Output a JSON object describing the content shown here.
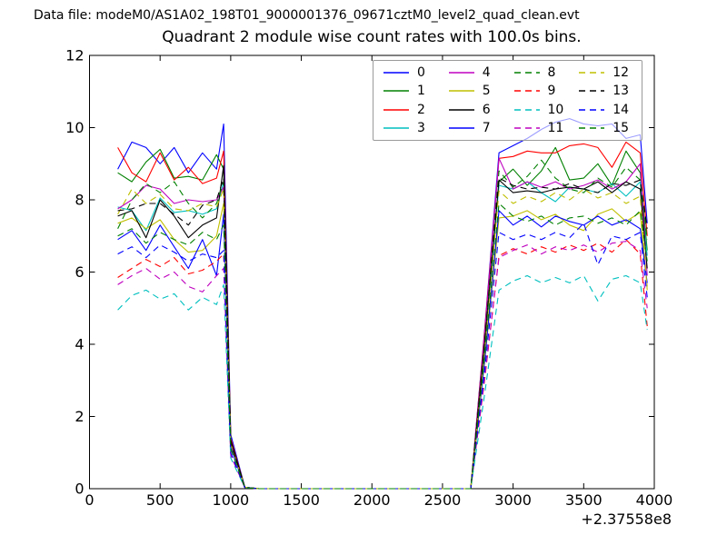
{
  "header": {
    "data_file_label": "Data file: modeM0/AS1A02_198T01_9000001376_09671cztM0_level2_quad_clean.evt"
  },
  "chart_data": {
    "type": "line",
    "title": "Quadrant 2 module wise count rates with 100.0s bins.",
    "xlabel": "",
    "ylabel": "",
    "xlim": [
      0,
      4000
    ],
    "ylim": [
      0,
      12
    ],
    "xticks": [
      0,
      500,
      1000,
      1500,
      2000,
      2500,
      3000,
      3500,
      4000
    ],
    "yticks": [
      0,
      2,
      4,
      6,
      8,
      10,
      12
    ],
    "x_offset_text": "+2.37558e8",
    "grid": false,
    "legend_position": "upper right, 4 columns, semi-transparent",
    "x": [
      200,
      300,
      400,
      500,
      600,
      700,
      800,
      900,
      950,
      1000,
      1100,
      1200,
      1300,
      1400,
      1500,
      1600,
      1700,
      1800,
      1900,
      2000,
      2100,
      2200,
      2300,
      2400,
      2500,
      2600,
      2700,
      2800,
      2900,
      3000,
      3100,
      3200,
      3300,
      3400,
      3500,
      3600,
      3700,
      3800,
      3900,
      3950
    ],
    "series": [
      {
        "name": "0",
        "color": "#0000ff",
        "dash": false,
        "values": [
          8.85,
          9.6,
          9.45,
          9.0,
          9.45,
          8.75,
          9.3,
          8.85,
          10.1,
          1.5,
          0.04,
          0,
          0,
          0,
          0,
          0,
          0,
          0,
          0,
          0,
          0,
          0,
          0,
          0,
          0,
          0,
          0,
          4.45,
          9.3,
          9.5,
          9.7,
          9.95,
          10.15,
          10.25,
          10.1,
          10.05,
          10.1,
          9.7,
          9.8,
          7.35
        ]
      },
      {
        "name": "1",
        "color": "#008000",
        "dash": false,
        "values": [
          8.75,
          8.5,
          9.05,
          9.4,
          8.6,
          8.65,
          8.55,
          9.25,
          8.85,
          1.35,
          0.04,
          0,
          0,
          0,
          0,
          0,
          0,
          0,
          0,
          0,
          0,
          0,
          0,
          0,
          0,
          0,
          0,
          4.1,
          8.5,
          8.85,
          8.4,
          8.8,
          9.45,
          8.55,
          8.6,
          9.0,
          8.4,
          9.35,
          8.75,
          6.6
        ]
      },
      {
        "name": "2",
        "color": "#ff0000",
        "dash": false,
        "values": [
          9.45,
          8.75,
          8.5,
          9.3,
          8.55,
          8.9,
          8.45,
          8.6,
          9.35,
          1.4,
          0.04,
          0,
          0,
          0,
          0,
          0,
          0,
          0,
          0,
          0,
          0,
          0,
          0,
          0,
          0,
          0,
          0,
          4.4,
          9.15,
          9.2,
          9.35,
          9.3,
          9.3,
          9.5,
          9.55,
          9.45,
          8.9,
          9.6,
          9.3,
          7.0
        ]
      },
      {
        "name": "3",
        "color": "#00bfbf",
        "dash": false,
        "values": [
          7.8,
          7.7,
          7.15,
          8.05,
          7.65,
          7.7,
          7.6,
          7.75,
          8.5,
          1.28,
          0.04,
          0,
          0,
          0,
          0,
          0,
          0,
          0,
          0,
          0,
          0,
          0,
          0,
          0,
          0,
          0,
          0,
          4.0,
          8.4,
          8.3,
          8.5,
          8.2,
          7.95,
          8.35,
          8.3,
          8.2,
          8.45,
          8.1,
          8.5,
          6.45
        ]
      },
      {
        "name": "4",
        "color": "#bf00bf",
        "dash": false,
        "values": [
          7.75,
          8.0,
          8.4,
          8.3,
          7.9,
          8.0,
          7.95,
          8.0,
          8.35,
          1.25,
          0.04,
          0,
          0,
          0,
          0,
          0,
          0,
          0,
          0,
          0,
          0,
          0,
          0,
          0,
          0,
          0,
          0,
          4.3,
          9.15,
          8.3,
          8.5,
          8.35,
          8.5,
          8.3,
          8.4,
          8.55,
          8.3,
          8.5,
          9.0,
          5.9
        ]
      },
      {
        "name": "5",
        "color": "#bfbf00",
        "dash": false,
        "values": [
          7.35,
          7.5,
          7.2,
          7.45,
          6.9,
          6.55,
          6.6,
          7.0,
          7.9,
          1.18,
          0.04,
          0,
          0,
          0,
          0,
          0,
          0,
          0,
          0,
          0,
          0,
          0,
          0,
          0,
          0,
          0,
          0,
          3.55,
          7.5,
          7.55,
          7.7,
          7.45,
          7.6,
          7.3,
          7.15,
          7.6,
          7.75,
          7.4,
          7.65,
          5.6
        ]
      },
      {
        "name": "6",
        "color": "#000000",
        "dash": false,
        "values": [
          7.55,
          7.7,
          6.95,
          8.0,
          7.55,
          6.95,
          7.3,
          7.5,
          8.95,
          1.34,
          0.04,
          0,
          0,
          0,
          0,
          0,
          0,
          0,
          0,
          0,
          0,
          0,
          0,
          0,
          0,
          0,
          0,
          4.05,
          8.55,
          8.2,
          8.25,
          8.2,
          8.3,
          8.35,
          8.3,
          8.5,
          8.2,
          8.5,
          8.3,
          6.1
        ]
      },
      {
        "name": "7",
        "color": "#0000ff",
        "dash": false,
        "values": [
          6.9,
          7.15,
          6.6,
          7.3,
          6.7,
          6.1,
          6.9,
          5.9,
          7.6,
          1.14,
          0.04,
          0,
          0,
          0,
          0,
          0,
          0,
          0,
          0,
          0,
          0,
          0,
          0,
          0,
          0,
          0,
          0,
          3.6,
          7.7,
          7.3,
          7.55,
          7.25,
          7.55,
          7.4,
          7.3,
          7.55,
          7.3,
          7.45,
          7.2,
          5.7
        ]
      },
      {
        "name": "8",
        "color": "#008000",
        "dash": true,
        "values": [
          7.2,
          8.0,
          8.45,
          8.2,
          8.5,
          7.9,
          7.5,
          7.9,
          8.5,
          1.27,
          0.04,
          0,
          0,
          0,
          0,
          0,
          0,
          0,
          0,
          0,
          0,
          0,
          0,
          0,
          0,
          0,
          0,
          4.15,
          8.8,
          8.35,
          8.65,
          9.1,
          8.6,
          8.3,
          8.2,
          8.6,
          8.35,
          8.9,
          8.55,
          6.9
        ]
      },
      {
        "name": "9",
        "color": "#ff0000",
        "dash": true,
        "values": [
          5.85,
          6.1,
          6.35,
          6.15,
          6.4,
          5.95,
          6.05,
          6.3,
          6.5,
          0.97,
          0.03,
          0,
          0,
          0,
          0,
          0,
          0,
          0,
          0,
          0,
          0,
          0,
          0,
          0,
          0,
          0,
          0,
          3.05,
          6.45,
          6.65,
          6.5,
          6.7,
          6.55,
          6.75,
          6.6,
          6.8,
          6.55,
          6.9,
          6.5,
          4.5
        ]
      },
      {
        "name": "10",
        "color": "#00bfbf",
        "dash": true,
        "values": [
          4.95,
          5.35,
          5.5,
          5.25,
          5.4,
          4.95,
          5.3,
          5.1,
          5.65,
          0.85,
          0.03,
          0,
          0,
          0,
          0,
          0,
          0,
          0,
          0,
          0,
          0,
          0,
          0,
          0,
          0,
          0,
          0,
          2.65,
          5.5,
          5.75,
          5.9,
          5.7,
          5.85,
          5.7,
          5.9,
          5.2,
          5.8,
          5.9,
          5.7,
          4.4
        ]
      },
      {
        "name": "11",
        "color": "#bf00bf",
        "dash": true,
        "values": [
          5.65,
          5.9,
          6.1,
          5.8,
          6.0,
          5.6,
          5.45,
          5.9,
          6.1,
          0.92,
          0.03,
          0,
          0,
          0,
          0,
          0,
          0,
          0,
          0,
          0,
          0,
          0,
          0,
          0,
          0,
          0,
          0,
          3.1,
          6.4,
          6.6,
          6.75,
          6.5,
          6.7,
          6.6,
          6.75,
          6.55,
          6.8,
          6.85,
          6.6,
          5.0
        ]
      },
      {
        "name": "12",
        "color": "#bfbf00",
        "dash": true,
        "values": [
          7.6,
          8.3,
          7.9,
          8.15,
          7.75,
          7.7,
          7.9,
          7.8,
          8.3,
          1.24,
          0.04,
          0,
          0,
          0,
          0,
          0,
          0,
          0,
          0,
          0,
          0,
          0,
          0,
          0,
          0,
          0,
          0,
          3.85,
          8.25,
          7.9,
          8.1,
          7.95,
          8.2,
          8.0,
          8.3,
          8.05,
          8.2,
          7.9,
          8.1,
          5.5
        ]
      },
      {
        "name": "13",
        "color": "#000000",
        "dash": true,
        "values": [
          7.7,
          7.75,
          7.9,
          7.9,
          7.6,
          7.3,
          7.85,
          8.0,
          8.6,
          1.29,
          0.04,
          0,
          0,
          0,
          0,
          0,
          0,
          0,
          0,
          0,
          0,
          0,
          0,
          0,
          0,
          0,
          0,
          4.1,
          8.6,
          8.4,
          8.3,
          8.35,
          8.3,
          8.45,
          8.3,
          8.2,
          8.45,
          8.4,
          8.55,
          7.2
        ]
      },
      {
        "name": "14",
        "color": "#0000ff",
        "dash": true,
        "values": [
          6.5,
          6.7,
          6.4,
          6.75,
          6.55,
          6.3,
          6.5,
          6.4,
          6.6,
          0.99,
          0.03,
          0,
          0,
          0,
          0,
          0,
          0,
          0,
          0,
          0,
          0,
          0,
          0,
          0,
          0,
          0,
          0,
          3.3,
          7.1,
          6.9,
          7.05,
          6.9,
          7.1,
          6.95,
          7.35,
          6.2,
          7.0,
          6.9,
          7.1,
          5.3
        ]
      },
      {
        "name": "15",
        "color": "#008000",
        "dash": true,
        "values": [
          7.0,
          7.2,
          6.8,
          7.1,
          6.9,
          6.75,
          7.1,
          6.9,
          7.3,
          1.1,
          0.03,
          0,
          0,
          0,
          0,
          0,
          0,
          0,
          0,
          0,
          0,
          0,
          0,
          0,
          0,
          0,
          0,
          3.7,
          7.9,
          7.55,
          7.4,
          7.55,
          7.3,
          7.5,
          7.55,
          7.35,
          7.5,
          7.3,
          7.7,
          6.3
        ]
      }
    ]
  }
}
